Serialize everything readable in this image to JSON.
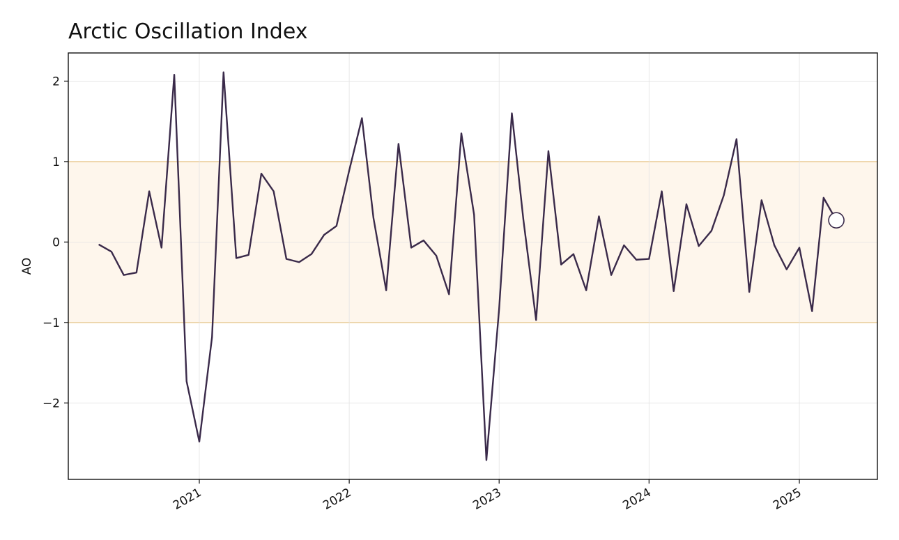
{
  "chart_data": {
    "type": "line",
    "title": "Arctic Oscillation Index",
    "xlabel": "",
    "ylabel": "AO",
    "x_tick_labels": [
      "2021",
      "2022",
      "2023",
      "2024",
      "2025"
    ],
    "y_tick_labels": [
      "−2",
      "−1",
      "0",
      "1",
      "2"
    ],
    "y_ticks": [
      -2,
      -1,
      0,
      1,
      2
    ],
    "ylim": [
      -2.95,
      2.35
    ],
    "xlim": [
      "2020-02-17",
      "2025-07-10"
    ],
    "grid": true,
    "band": {
      "from": -1,
      "to": 1,
      "color": "#fef6ec",
      "edge_color": "#f5b94d"
    },
    "line_color": "#3a2a4a",
    "series": [
      {
        "x": [
          "2020-05",
          "2020-06",
          "2020-07",
          "2020-08",
          "2020-09",
          "2020-10",
          "2020-11",
          "2020-12",
          "2021-01",
          "2021-02",
          "2021-03",
          "2021-04",
          "2021-05",
          "2021-06",
          "2021-07",
          "2021-08",
          "2021-09",
          "2021-10",
          "2021-11",
          "2021-12",
          "2022-01",
          "2022-02",
          "2022-03",
          "2022-04",
          "2022-05",
          "2022-06",
          "2022-07",
          "2022-08",
          "2022-09",
          "2022-10",
          "2022-11",
          "2022-12",
          "2023-01",
          "2023-02",
          "2023-03",
          "2023-04",
          "2023-05",
          "2023-06",
          "2023-07",
          "2023-08",
          "2023-09",
          "2023-10",
          "2023-11",
          "2023-12",
          "2024-01",
          "2024-02",
          "2024-03",
          "2024-04",
          "2024-05",
          "2024-06",
          "2024-07",
          "2024-08",
          "2024-09",
          "2024-10",
          "2024-11",
          "2024-12",
          "2025-01",
          "2025-02",
          "2025-03",
          "2025-04"
        ],
        "values": [
          -0.03,
          -0.12,
          -0.41,
          -0.38,
          0.63,
          -0.07,
          2.08,
          -1.73,
          -2.48,
          -1.18,
          2.11,
          -0.2,
          -0.16,
          0.85,
          0.63,
          -0.21,
          -0.25,
          -0.15,
          0.09,
          0.2,
          0.89,
          1.54,
          0.3,
          -0.6,
          1.22,
          -0.07,
          0.02,
          -0.17,
          -0.65,
          1.35,
          0.34,
          -2.71,
          -0.83,
          1.6,
          0.28,
          -0.97,
          1.13,
          -0.28,
          -0.15,
          -0.6,
          0.32,
          -0.41,
          -0.04,
          -0.22,
          -0.21,
          0.63,
          -0.61,
          0.47,
          -0.05,
          0.14,
          0.58,
          1.28,
          -0.62,
          0.52,
          -0.04,
          -0.34,
          -0.07,
          -0.86,
          0.55,
          0.27
        ]
      }
    ],
    "highlight_point": {
      "x": "2025-04",
      "y": 0.27
    }
  }
}
